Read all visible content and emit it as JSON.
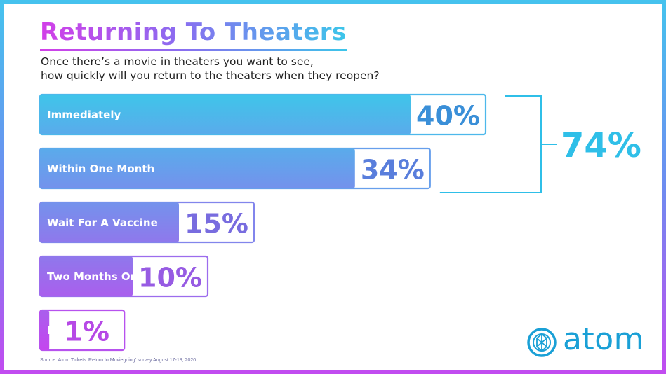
{
  "title": "Returning To Theaters",
  "subtitle_line1": "Once there’s a movie in theaters you want to see,",
  "subtitle_line2": "how quickly will you return to the theaters when they reopen?",
  "source": "Source: Atom Tickets 'Return to Moviegoing' survey August 17-18, 2020.",
  "logo_text": "atom",
  "colors": {
    "bar_top": "#3fc5ea",
    "bar_bottom": "#c445ee",
    "value_text_top": "#3a8fd8",
    "value_text_bottom": "#b649e6",
    "bracket": "#2fbfe8"
  },
  "chart_data": {
    "type": "bar",
    "orientation": "horizontal",
    "categories": [
      "Immediately",
      "Within One Month",
      "Wait For A Vaccine",
      "Two Months Or More",
      "Never"
    ],
    "values": [
      40,
      34,
      15,
      10,
      1
    ],
    "value_labels": [
      "40%",
      "34%",
      "15%",
      "10%",
      "1%"
    ],
    "xlim": [
      0,
      40
    ],
    "grid": false,
    "bracket": {
      "covers": [
        "Immediately",
        "Within One Month"
      ],
      "label": "74%",
      "value": 74
    }
  }
}
